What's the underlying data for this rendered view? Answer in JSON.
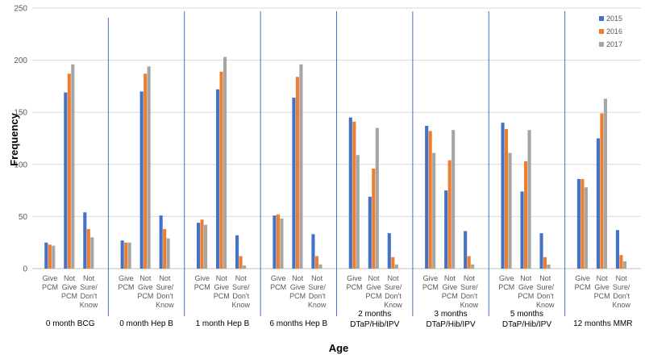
{
  "chart_data": {
    "type": "bar",
    "title": "",
    "xlabel": "Age",
    "ylabel": "Frequency",
    "ylim": [
      0,
      250
    ],
    "yticks": [
      0,
      50,
      100,
      150,
      200,
      250
    ],
    "grid": true,
    "legend_position": "top-right",
    "series": [
      {
        "name": "2015",
        "color": "#4472C4"
      },
      {
        "name": "2016",
        "color": "#ED7D31"
      },
      {
        "name": "2017",
        "color": "#A5A5A5"
      }
    ],
    "subcategories": [
      [
        "Give",
        "PCM"
      ],
      [
        "Not",
        "Give",
        "PCM"
      ],
      [
        "Not",
        "Sure/",
        "Don't",
        "Know"
      ]
    ],
    "groups": [
      {
        "label": [
          "0 month BCG"
        ],
        "values": [
          [
            25,
            23,
            22
          ],
          [
            169,
            187,
            196
          ],
          [
            54,
            38,
            30
          ]
        ]
      },
      {
        "label": [
          "0 month Hep B"
        ],
        "values": [
          [
            27,
            25,
            25
          ],
          [
            170,
            187,
            194
          ],
          [
            51,
            38,
            29
          ]
        ]
      },
      {
        "label": [
          "1 month Hep B"
        ],
        "values": [
          [
            44,
            47,
            42
          ],
          [
            172,
            189,
            203
          ],
          [
            32,
            12,
            3
          ]
        ]
      },
      {
        "label": [
          "6 months Hep B"
        ],
        "values": [
          [
            51,
            52,
            48
          ],
          [
            164,
            184,
            196
          ],
          [
            33,
            12,
            4
          ]
        ]
      },
      {
        "label": [
          "2 months",
          "DTaP/Hib/IPV"
        ],
        "values": [
          [
            145,
            141,
            109
          ],
          [
            69,
            96,
            135
          ],
          [
            34,
            11,
            4
          ]
        ]
      },
      {
        "label": [
          "3 months",
          "DTaP/Hib/IPV"
        ],
        "values": [
          [
            137,
            132,
            111
          ],
          [
            75,
            104,
            133
          ],
          [
            36,
            12,
            4
          ]
        ]
      },
      {
        "label": [
          "5 months",
          "DTaP/Hib/IPV"
        ],
        "values": [
          [
            140,
            134,
            111
          ],
          [
            74,
            103,
            133
          ],
          [
            34,
            11,
            4
          ]
        ]
      },
      {
        "label": [
          "12 months MMR"
        ],
        "values": [
          [
            86,
            86,
            78
          ],
          [
            125,
            149,
            163
          ],
          [
            37,
            13,
            7
          ]
        ]
      }
    ]
  }
}
